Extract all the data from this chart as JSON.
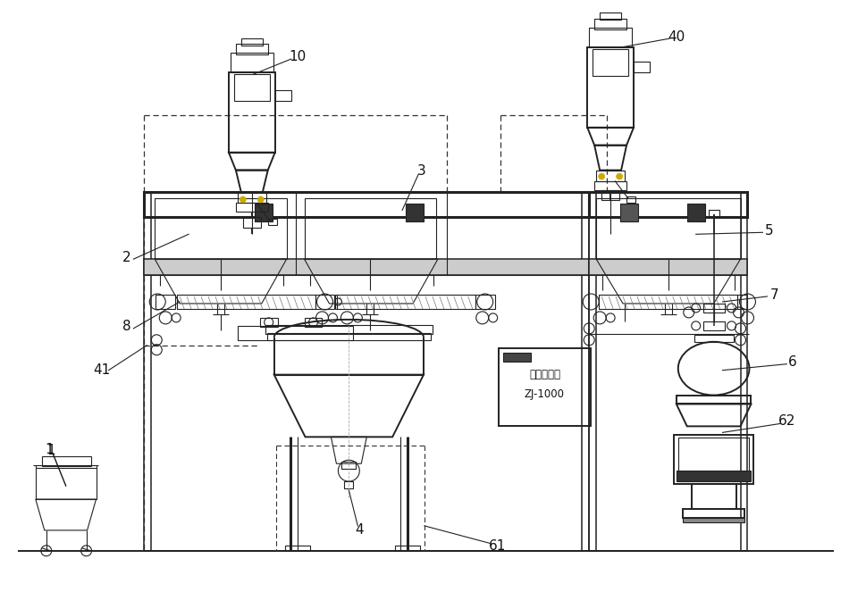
{
  "bg_color": "#ffffff",
  "line_color": "#222222",
  "dashed_color": "#333333",
  "yellow_color": "#ccaa00",
  "label_color": "#111111",
  "gray_fill": "#888888",
  "dark_fill": "#444444",
  "light_fill": "#dddddd"
}
